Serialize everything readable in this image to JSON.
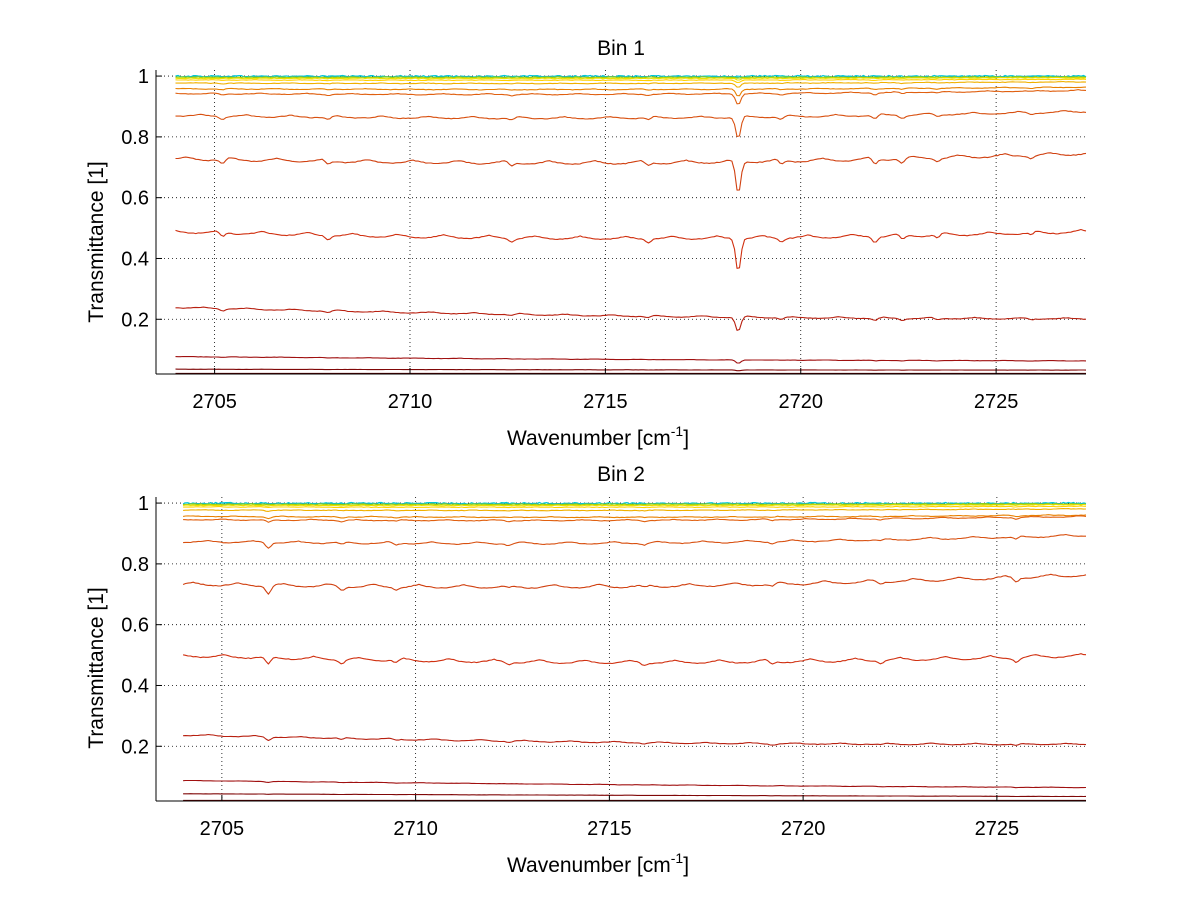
{
  "chart_data": [
    {
      "type": "line",
      "title": "Bin 1",
      "xlabel": "Wavenumber [cm",
      "xlabel_sup": "-1",
      "xlabel_close": "]",
      "ylabel": "Transmittance [1]",
      "xlim": [
        2703.5,
        2727.3
      ],
      "ylim": [
        0.02,
        1.02
      ],
      "xticks": [
        2705,
        2710,
        2715,
        2720,
        2725
      ],
      "xtick_labels": [
        "2705",
        "2710",
        "2715",
        "2720",
        "2725"
      ],
      "yticks": [
        0.2,
        0.4,
        0.6,
        0.8,
        1.0
      ],
      "ytick_labels": [
        "0.2",
        "0.4",
        "0.6",
        "0.8",
        "1"
      ],
      "grid": true,
      "x_start": 2704,
      "x_end": 2727.3,
      "series": [
        {
          "values_start": 1.0,
          "values_end": 1.0,
          "color": "#00c8d8",
          "noise": 0.0025,
          "dip_scale": 0.002
        },
        {
          "values_start": 0.998,
          "values_end": 0.998,
          "color": "#30b8a0",
          "noise": 0.002,
          "dip_scale": 0.004
        },
        {
          "values_start": 0.996,
          "values_end": 0.997,
          "color": "#a0d000",
          "noise": 0.0015,
          "dip_scale": 0.006
        },
        {
          "values_start": 0.993,
          "values_end": 0.995,
          "color": "#e8e000",
          "noise": 0.001,
          "dip_scale": 0.01
        },
        {
          "values_start": 0.988,
          "values_end": 0.99,
          "color": "#ffd000",
          "noise": 0.0008,
          "dip_scale": 0.015
        },
        {
          "values_start": 0.978,
          "values_end": 0.982,
          "color": "#f0b000",
          "noise": 0.0008,
          "dip_scale": 0.025
        },
        {
          "values_start": 0.96,
          "values_end": 0.965,
          "color": "#e88000",
          "noise": 0.0008,
          "dip_scale": 0.04
        },
        {
          "values_start": 0.945,
          "values_end": 0.955,
          "color": "#e06010",
          "noise": 0.0008,
          "dip_scale": 0.06
        },
        {
          "values_start": 0.875,
          "values_end": 0.888,
          "color": "#d85010",
          "noise": 0.001,
          "dip_scale": 0.12
        },
        {
          "values_start": 0.735,
          "values_end": 0.752,
          "color": "#d04010",
          "noise": 0.0012,
          "dip_scale": 0.18
        },
        {
          "values_start": 0.495,
          "values_end": 0.495,
          "color": "#d03010",
          "noise": 0.0012,
          "dip_scale": 0.18
        },
        {
          "values_start": 0.242,
          "values_end": 0.205,
          "color": "#b82010",
          "noise": 0.0008,
          "dip_scale": 0.08
        },
        {
          "values_start": 0.078,
          "values_end": 0.064,
          "color": "#a01010",
          "noise": 0.0004,
          "dip_scale": 0.02
        },
        {
          "values_start": 0.036,
          "values_end": 0.033,
          "color": "#800808",
          "noise": 0.0002,
          "dip_scale": 0.005
        },
        {
          "values_start": 0.022,
          "values_end": 0.022,
          "color": "#600000",
          "noise": 0.0,
          "dip_scale": 0.0
        }
      ],
      "dips": [
        {
          "x": 2718.4,
          "depth": 0.6
        },
        {
          "x": 2705.2,
          "depth": 0.08
        },
        {
          "x": 2707.9,
          "depth": 0.07
        },
        {
          "x": 2712.6,
          "depth": 0.06
        },
        {
          "x": 2716.1,
          "depth": 0.06
        },
        {
          "x": 2719.5,
          "depth": 0.07
        },
        {
          "x": 2721.9,
          "depth": 0.1
        },
        {
          "x": 2722.6,
          "depth": 0.08
        },
        {
          "x": 2723.5,
          "depth": 0.06
        },
        {
          "x": 2725.9,
          "depth": 0.05
        }
      ]
    },
    {
      "type": "line",
      "title": "Bin 2",
      "xlabel": "Wavenumber [cm",
      "xlabel_sup": "-1",
      "xlabel_close": "]",
      "ylabel": "Transmittance [1]",
      "xlim": [
        2703.3,
        2727.3
      ],
      "ylim": [
        0.02,
        1.02
      ],
      "xticks": [
        2705,
        2710,
        2715,
        2720,
        2725
      ],
      "xtick_labels": [
        "2705",
        "2710",
        "2715",
        "2720",
        "2725"
      ],
      "yticks": [
        0.2,
        0.4,
        0.6,
        0.8,
        1.0
      ],
      "ytick_labels": [
        "0.2",
        "0.4",
        "0.6",
        "0.8",
        "1"
      ],
      "grid": true,
      "x_start": 2704,
      "x_end": 2727.3,
      "series": [
        {
          "values_start": 1.0,
          "values_end": 1.0,
          "color": "#00c8d8",
          "noise": 0.0025,
          "dip_scale": 0.002
        },
        {
          "values_start": 0.998,
          "values_end": 0.998,
          "color": "#30b8a0",
          "noise": 0.002,
          "dip_scale": 0.004
        },
        {
          "values_start": 0.996,
          "values_end": 0.997,
          "color": "#a0d000",
          "noise": 0.0015,
          "dip_scale": 0.006
        },
        {
          "values_start": 0.993,
          "values_end": 0.995,
          "color": "#e8e000",
          "noise": 0.001,
          "dip_scale": 0.01
        },
        {
          "values_start": 0.988,
          "values_end": 0.99,
          "color": "#ffd000",
          "noise": 0.0008,
          "dip_scale": 0.015
        },
        {
          "values_start": 0.978,
          "values_end": 0.982,
          "color": "#f0b000",
          "noise": 0.0008,
          "dip_scale": 0.025
        },
        {
          "values_start": 0.958,
          "values_end": 0.962,
          "color": "#e88000",
          "noise": 0.0008,
          "dip_scale": 0.04
        },
        {
          "values_start": 0.948,
          "values_end": 0.958,
          "color": "#e06010",
          "noise": 0.0008,
          "dip_scale": 0.06
        },
        {
          "values_start": 0.878,
          "values_end": 0.898,
          "color": "#d85010",
          "noise": 0.001,
          "dip_scale": 0.12
        },
        {
          "values_start": 0.74,
          "values_end": 0.77,
          "color": "#d04010",
          "noise": 0.0012,
          "dip_scale": 0.18
        },
        {
          "values_start": 0.505,
          "values_end": 0.505,
          "color": "#d03010",
          "noise": 0.0012,
          "dip_scale": 0.18
        },
        {
          "values_start": 0.24,
          "values_end": 0.21,
          "color": "#b82010",
          "noise": 0.0008,
          "dip_scale": 0.08
        },
        {
          "values_start": 0.088,
          "values_end": 0.065,
          "color": "#a01010",
          "noise": 0.0004,
          "dip_scale": 0.02
        },
        {
          "values_start": 0.044,
          "values_end": 0.035,
          "color": "#800808",
          "noise": 0.0002,
          "dip_scale": 0.005
        },
        {
          "values_start": 0.022,
          "values_end": 0.022,
          "color": "#600000",
          "noise": 0.0,
          "dip_scale": 0.0
        }
      ],
      "dips": [
        {
          "x": 2706.2,
          "depth": 0.15
        },
        {
          "x": 2708.1,
          "depth": 0.07
        },
        {
          "x": 2709.5,
          "depth": 0.05
        },
        {
          "x": 2712.4,
          "depth": 0.05
        },
        {
          "x": 2715.9,
          "depth": 0.05
        },
        {
          "x": 2719.2,
          "depth": 0.05
        },
        {
          "x": 2722.0,
          "depth": 0.05
        },
        {
          "x": 2725.5,
          "depth": 0.08
        }
      ]
    }
  ]
}
